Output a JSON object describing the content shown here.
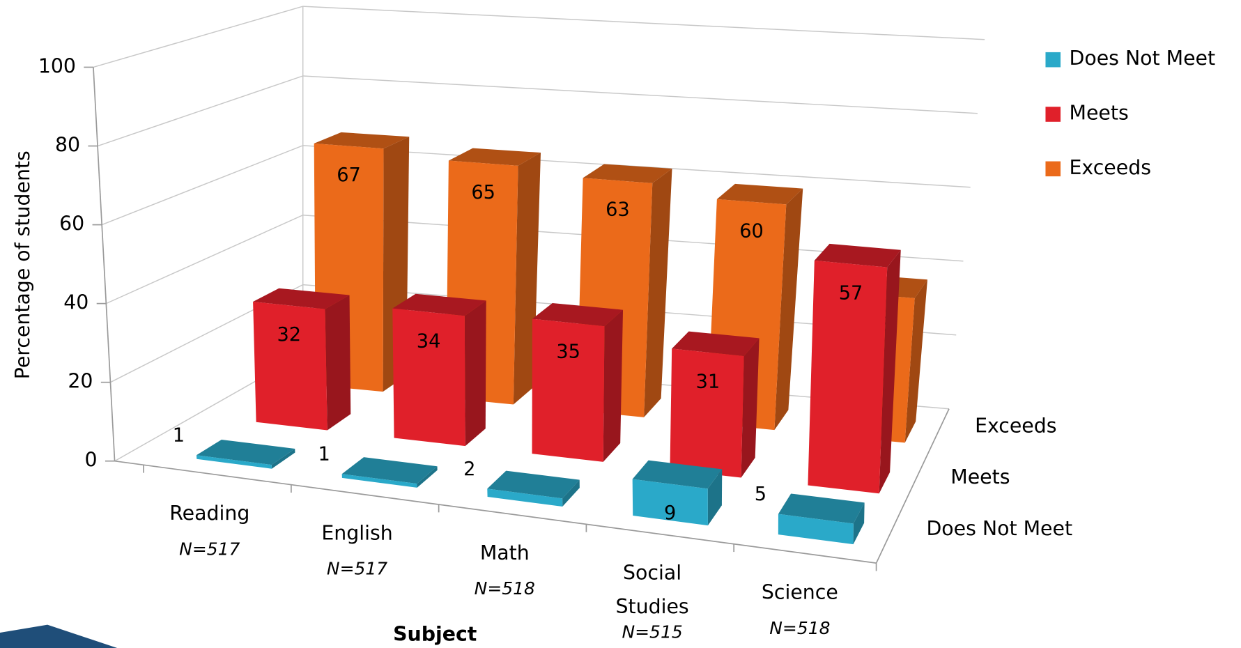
{
  "chart_data": {
    "type": "bar3d",
    "ylabel": "Percentage of students",
    "xlabel": "Subject",
    "categories": [
      "Reading",
      "English",
      "Math",
      "Social Studies",
      "Science"
    ],
    "category_notes": [
      "N=517",
      "N=517",
      "N=518",
      "N=515",
      "N=518"
    ],
    "series": [
      {
        "name": "Does Not Meet",
        "color": "#2aa9c9",
        "values": [
          1,
          1,
          2,
          9,
          5
        ]
      },
      {
        "name": "Meets",
        "color": "#e0202a",
        "values": [
          32,
          34,
          35,
          31,
          57
        ]
      },
      {
        "name": "Exceeds",
        "color": "#eb6a1a",
        "values": [
          67,
          65,
          63,
          60,
          38
        ]
      }
    ],
    "ylim": [
      0,
      100
    ],
    "yticks": [
      0,
      20,
      40,
      60,
      80,
      100
    ],
    "grid": true,
    "legend": "top-right"
  }
}
